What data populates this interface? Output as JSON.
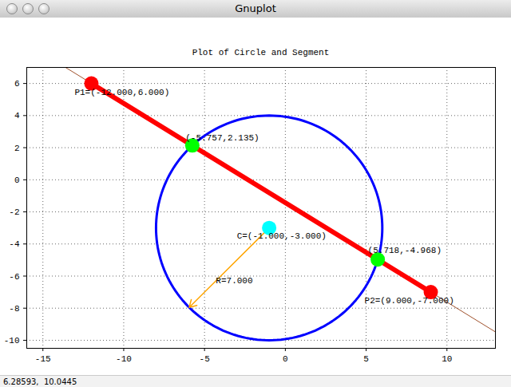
{
  "window": {
    "title": "Gnuplot",
    "status": "6.28593,  10.0445"
  },
  "chart_data": {
    "type": "scatter",
    "title": "Plot of Circle and Segment",
    "xlim": [
      -16,
      13
    ],
    "xticks": [
      -15,
      -10,
      -5,
      0,
      5,
      10
    ],
    "ylim": [
      -10.5,
      7
    ],
    "yticks": [
      -10,
      -8,
      -6,
      -4,
      -2,
      0,
      2,
      4,
      6
    ],
    "grid": true,
    "series": [
      {
        "type": "line",
        "line_style": "thin",
        "color": "#a0522d",
        "x": [
          -13.6,
          13
        ],
        "values": [
          7,
          -9.48
        ]
      },
      {
        "type": "circle",
        "color": "#0000ff",
        "center": [
          -1,
          -3
        ],
        "radius": 7
      },
      {
        "type": "line",
        "line_style": "thick",
        "color": "#ff0000",
        "x": [
          -12,
          9
        ],
        "values": [
          6,
          -7
        ]
      },
      {
        "type": "arrow",
        "color": "#ffa500",
        "x": [
          -1,
          -5.95
        ],
        "values": [
          -3,
          -7.95
        ]
      },
      {
        "type": "scatter",
        "marker": "circle",
        "colors": [
          "#ff0000",
          "#ff0000",
          "#00ff00",
          "#00ff00",
          "#00ffff"
        ],
        "x": [
          -12,
          9,
          -5.757,
          5.718,
          -1
        ],
        "values": [
          6,
          -7,
          2.135,
          -4.968,
          -3
        ]
      }
    ],
    "annotations": [
      {
        "text": "P1=(-12.000,6.000)",
        "x": -13.04,
        "y": 5.47
      },
      {
        "text": "(-5.757,2.135)",
        "x": -6.18,
        "y": 2.64
      },
      {
        "text": "C=(-1.000,-3.000)",
        "x": -3.0,
        "y": -3.48
      },
      {
        "text": "R=7.000",
        "x": -4.3,
        "y": -6.27
      },
      {
        "text": "(5.718,-4.968)",
        "x": 5.1,
        "y": -4.38
      },
      {
        "text": "P2=(9.000,-7.000)",
        "x": 4.9,
        "y": -7.5
      }
    ]
  }
}
